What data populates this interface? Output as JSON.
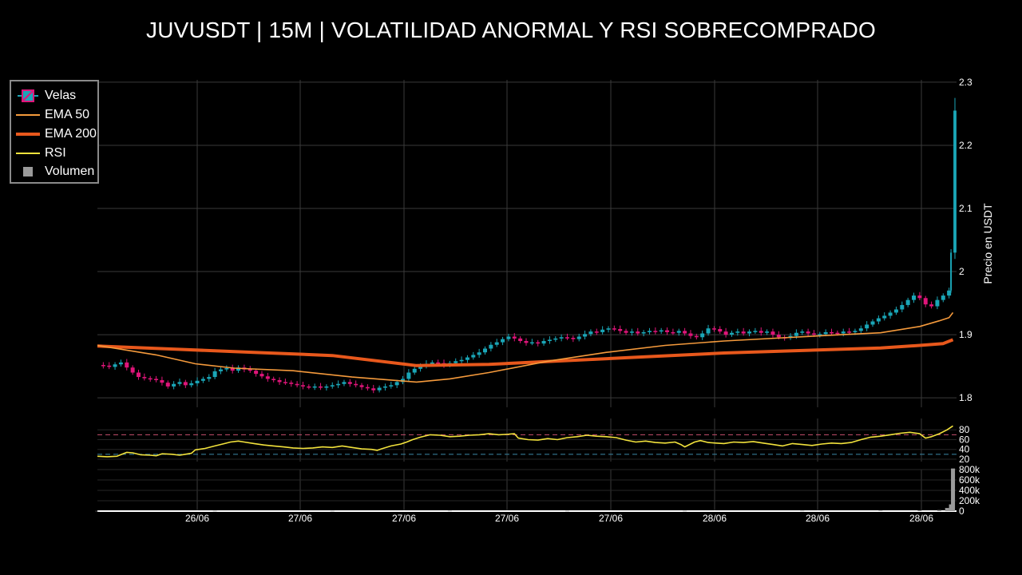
{
  "title": "JUVUSDT | 15M | VOLATILIDAD ANORMAL Y RSI SOBRECOMPRADO",
  "colors": {
    "background": "#000000",
    "grid": "#3a3a3a",
    "candle_up": "#1aa6b7",
    "candle_down": "#e0157a",
    "ema50": "#f59a3c",
    "ema200": "#e8581c",
    "rsi": "#f2e23c",
    "rsi_overbought_line": "#c8506e",
    "rsi_oversold_line": "#3c8aa8",
    "volume": "#9a9a9a"
  },
  "legend": {
    "placement": "top-left",
    "items": [
      {
        "label": "Velas",
        "icon": "candlestick-icon"
      },
      {
        "label": "EMA 50",
        "icon": "thin-line-icon"
      },
      {
        "label": "EMA 200",
        "icon": "thick-line-icon"
      },
      {
        "label": "RSI",
        "icon": "line-icon"
      },
      {
        "label": "Volumen",
        "icon": "square-icon"
      }
    ]
  },
  "chart_data": {
    "type": "candlestick",
    "x_tick_labels": [
      "26/06",
      "27/06",
      "27/06",
      "27/06",
      "27/06",
      "28/06",
      "28/06",
      "28/06"
    ],
    "price_panel": {
      "ylabel": "Precio en USDT",
      "yticks": [
        1.8,
        1.9,
        2,
        2.1,
        2.2,
        2.3
      ],
      "ytick_labels": [
        "1.8",
        "1.9",
        "2",
        "2.1",
        "2.2",
        "2.3"
      ],
      "ylim": [
        1.785,
        2.31
      ],
      "grid": true,
      "close_series": [
        [
          0,
          1.852
        ],
        [
          3,
          1.851
        ],
        [
          6,
          1.849
        ],
        [
          9,
          1.853
        ],
        [
          12,
          1.856
        ],
        [
          15,
          1.848
        ],
        [
          18,
          1.84
        ],
        [
          21,
          1.833
        ],
        [
          24,
          1.831
        ],
        [
          27,
          1.83
        ],
        [
          30,
          1.828
        ],
        [
          33,
          1.824
        ],
        [
          36,
          1.818
        ],
        [
          39,
          1.822
        ],
        [
          42,
          1.825
        ],
        [
          45,
          1.82
        ],
        [
          48,
          1.823
        ],
        [
          51,
          1.827
        ],
        [
          54,
          1.83
        ],
        [
          57,
          1.833
        ],
        [
          60,
          1.842
        ],
        [
          63,
          1.845
        ],
        [
          66,
          1.847
        ],
        [
          69,
          1.843
        ],
        [
          72,
          1.848
        ],
        [
          75,
          1.845
        ],
        [
          78,
          1.843
        ],
        [
          81,
          1.838
        ],
        [
          84,
          1.834
        ],
        [
          87,
          1.83
        ],
        [
          90,
          1.828
        ],
        [
          93,
          1.825
        ],
        [
          96,
          1.824
        ],
        [
          99,
          1.822
        ],
        [
          102,
          1.82
        ],
        [
          105,
          1.818
        ],
        [
          108,
          1.817
        ],
        [
          111,
          1.818
        ],
        [
          114,
          1.816
        ],
        [
          117,
          1.818
        ],
        [
          120,
          1.82
        ],
        [
          123,
          1.822
        ],
        [
          126,
          1.825
        ],
        [
          129,
          1.822
        ],
        [
          132,
          1.82
        ],
        [
          135,
          1.817
        ],
        [
          138,
          1.815
        ],
        [
          141,
          1.812
        ],
        [
          144,
          1.816
        ],
        [
          147,
          1.818
        ],
        [
          150,
          1.82
        ],
        [
          153,
          1.825
        ],
        [
          156,
          1.83
        ],
        [
          159,
          1.84
        ],
        [
          162,
          1.846
        ],
        [
          165,
          1.85
        ],
        [
          168,
          1.854
        ],
        [
          171,
          1.856
        ],
        [
          174,
          1.855
        ],
        [
          177,
          1.852
        ],
        [
          180,
          1.855
        ],
        [
          183,
          1.858
        ],
        [
          186,
          1.86
        ],
        [
          189,
          1.864
        ],
        [
          192,
          1.868
        ],
        [
          195,
          1.872
        ],
        [
          198,
          1.878
        ],
        [
          201,
          1.884
        ],
        [
          204,
          1.888
        ],
        [
          207,
          1.893
        ],
        [
          210,
          1.897
        ],
        [
          213,
          1.894
        ],
        [
          216,
          1.89
        ],
        [
          219,
          1.887
        ],
        [
          222,
          1.888
        ],
        [
          225,
          1.886
        ],
        [
          228,
          1.89
        ],
        [
          231,
          1.892
        ],
        [
          234,
          1.894
        ],
        [
          237,
          1.896
        ],
        [
          240,
          1.895
        ],
        [
          243,
          1.893
        ],
        [
          246,
          1.897
        ],
        [
          249,
          1.901
        ],
        [
          252,
          1.905
        ],
        [
          255,
          1.904
        ],
        [
          258,
          1.908
        ],
        [
          261,
          1.91
        ],
        [
          264,
          1.909
        ],
        [
          267,
          1.906
        ],
        [
          270,
          1.903
        ],
        [
          273,
          1.905
        ],
        [
          276,
          1.902
        ],
        [
          279,
          1.904
        ],
        [
          282,
          1.906
        ],
        [
          285,
          1.905
        ],
        [
          288,
          1.907
        ],
        [
          291,
          1.904
        ],
        [
          294,
          1.903
        ],
        [
          297,
          1.906
        ],
        [
          300,
          1.902
        ],
        [
          303,
          1.898
        ],
        [
          306,
          1.896
        ],
        [
          309,
          1.902
        ],
        [
          312,
          1.91
        ],
        [
          315,
          1.909
        ],
        [
          318,
          1.905
        ],
        [
          321,
          1.9
        ],
        [
          324,
          1.903
        ],
        [
          327,
          1.905
        ],
        [
          330,
          1.902
        ],
        [
          333,
          1.905
        ],
        [
          336,
          1.906
        ],
        [
          339,
          1.903
        ],
        [
          342,
          1.905
        ],
        [
          345,
          1.9
        ],
        [
          348,
          1.896
        ],
        [
          351,
          1.895
        ],
        [
          354,
          1.898
        ],
        [
          357,
          1.903
        ],
        [
          360,
          1.905
        ],
        [
          363,
          1.902
        ],
        [
          366,
          1.9
        ],
        [
          369,
          1.901
        ],
        [
          372,
          1.904
        ],
        [
          375,
          1.903
        ],
        [
          378,
          1.902
        ],
        [
          381,
          1.905
        ],
        [
          384,
          1.904
        ],
        [
          387,
          1.906
        ],
        [
          390,
          1.91
        ],
        [
          393,
          1.916
        ],
        [
          396,
          1.921
        ],
        [
          399,
          1.926
        ],
        [
          402,
          1.93
        ],
        [
          405,
          1.935
        ],
        [
          408,
          1.94
        ],
        [
          411,
          1.947
        ],
        [
          414,
          1.955
        ],
        [
          417,
          1.962
        ],
        [
          420,
          1.958
        ],
        [
          423,
          1.948
        ],
        [
          426,
          1.945
        ],
        [
          429,
          1.955
        ],
        [
          432,
          1.962
        ],
        [
          435,
          1.97
        ],
        [
          436,
          2.03
        ],
        [
          438,
          2.255
        ]
      ],
      "ema50": [
        [
          0,
          1.883
        ],
        [
          30,
          1.868
        ],
        [
          50,
          1.854
        ],
        [
          70,
          1.847
        ],
        [
          100,
          1.843
        ],
        [
          130,
          1.833
        ],
        [
          163,
          1.825
        ],
        [
          180,
          1.83
        ],
        [
          200,
          1.84
        ],
        [
          230,
          1.858
        ],
        [
          260,
          1.872
        ],
        [
          290,
          1.883
        ],
        [
          320,
          1.89
        ],
        [
          350,
          1.895
        ],
        [
          380,
          1.9
        ],
        [
          400,
          1.903
        ],
        [
          420,
          1.913
        ],
        [
          430,
          1.922
        ],
        [
          435,
          1.927
        ],
        [
          437,
          1.935
        ]
      ],
      "ema200": [
        [
          0,
          1.882
        ],
        [
          40,
          1.877
        ],
        [
          80,
          1.872
        ],
        [
          120,
          1.867
        ],
        [
          163,
          1.851
        ],
        [
          200,
          1.853
        ],
        [
          240,
          1.859
        ],
        [
          280,
          1.865
        ],
        [
          320,
          1.871
        ],
        [
          360,
          1.875
        ],
        [
          400,
          1.879
        ],
        [
          420,
          1.883
        ],
        [
          432,
          1.886
        ],
        [
          437,
          1.892
        ]
      ]
    },
    "rsi_panel": {
      "yticks": [
        20,
        40,
        60,
        80
      ],
      "ytick_labels": [
        "20",
        "40",
        "60",
        "80"
      ],
      "ylim": [
        15,
        100
      ],
      "overbought": 70,
      "oversold": 30,
      "series": [
        [
          0,
          26
        ],
        [
          5,
          25
        ],
        [
          10,
          26
        ],
        [
          15,
          34
        ],
        [
          18,
          33
        ],
        [
          22,
          29
        ],
        [
          27,
          28
        ],
        [
          30,
          27
        ],
        [
          33,
          31
        ],
        [
          38,
          30
        ],
        [
          42,
          28
        ],
        [
          45,
          30
        ],
        [
          48,
          32
        ],
        [
          50,
          39
        ],
        [
          55,
          42
        ],
        [
          60,
          47
        ],
        [
          65,
          52
        ],
        [
          68,
          55
        ],
        [
          72,
          57
        ],
        [
          75,
          55
        ],
        [
          80,
          52
        ],
        [
          85,
          49
        ],
        [
          90,
          47
        ],
        [
          95,
          45
        ],
        [
          100,
          43
        ],
        [
          105,
          42
        ],
        [
          110,
          43
        ],
        [
          115,
          45
        ],
        [
          120,
          44
        ],
        [
          125,
          47
        ],
        [
          130,
          44
        ],
        [
          135,
          41
        ],
        [
          140,
          40
        ],
        [
          143,
          38
        ],
        [
          145,
          41
        ],
        [
          150,
          47
        ],
        [
          155,
          51
        ],
        [
          158,
          55
        ],
        [
          161,
          60
        ],
        [
          165,
          65
        ],
        [
          170,
          70
        ],
        [
          175,
          69
        ],
        [
          180,
          66
        ],
        [
          185,
          67
        ],
        [
          190,
          69
        ],
        [
          195,
          70
        ],
        [
          200,
          72
        ],
        [
          205,
          70
        ],
        [
          210,
          71
        ],
        [
          213,
          72
        ],
        [
          215,
          63
        ],
        [
          220,
          60
        ],
        [
          225,
          59
        ],
        [
          230,
          62
        ],
        [
          235,
          60
        ],
        [
          240,
          64
        ],
        [
          245,
          66
        ],
        [
          250,
          69
        ],
        [
          255,
          67
        ],
        [
          260,
          66
        ],
        [
          265,
          64
        ],
        [
          270,
          59
        ],
        [
          275,
          55
        ],
        [
          280,
          57
        ],
        [
          285,
          54
        ],
        [
          290,
          53
        ],
        [
          295,
          55
        ],
        [
          298,
          50
        ],
        [
          300,
          45
        ],
        [
          305,
          55
        ],
        [
          308,
          58
        ],
        [
          312,
          54
        ],
        [
          316,
          53
        ],
        [
          320,
          52
        ],
        [
          325,
          55
        ],
        [
          330,
          54
        ],
        [
          335,
          56
        ],
        [
          340,
          53
        ],
        [
          345,
          50
        ],
        [
          350,
          47
        ],
        [
          355,
          52
        ],
        [
          360,
          50
        ],
        [
          365,
          48
        ],
        [
          370,
          51
        ],
        [
          375,
          53
        ],
        [
          380,
          52
        ],
        [
          385,
          54
        ],
        [
          390,
          60
        ],
        [
          395,
          65
        ],
        [
          400,
          67
        ],
        [
          405,
          70
        ],
        [
          410,
          73
        ],
        [
          415,
          75
        ],
        [
          420,
          72
        ],
        [
          423,
          63
        ],
        [
          426,
          66
        ],
        [
          430,
          72
        ],
        [
          434,
          80
        ],
        [
          437,
          88
        ]
      ]
    },
    "volume_panel": {
      "yticks": [
        0,
        200000,
        400000,
        600000,
        800000
      ],
      "ytick_labels": [
        "0",
        "200k",
        "400k",
        "600k",
        "800k"
      ],
      "ylim": [
        0,
        830000
      ],
      "values": [
        [
          0,
          3000
        ],
        [
          60,
          4000
        ],
        [
          120,
          3000
        ],
        [
          180,
          5000
        ],
        [
          240,
          4000
        ],
        [
          300,
          4000
        ],
        [
          360,
          5000
        ],
        [
          400,
          8000
        ],
        [
          420,
          15000
        ],
        [
          430,
          20000
        ],
        [
          434,
          60000
        ],
        [
          436,
          130000
        ],
        [
          437,
          820000
        ]
      ]
    }
  }
}
